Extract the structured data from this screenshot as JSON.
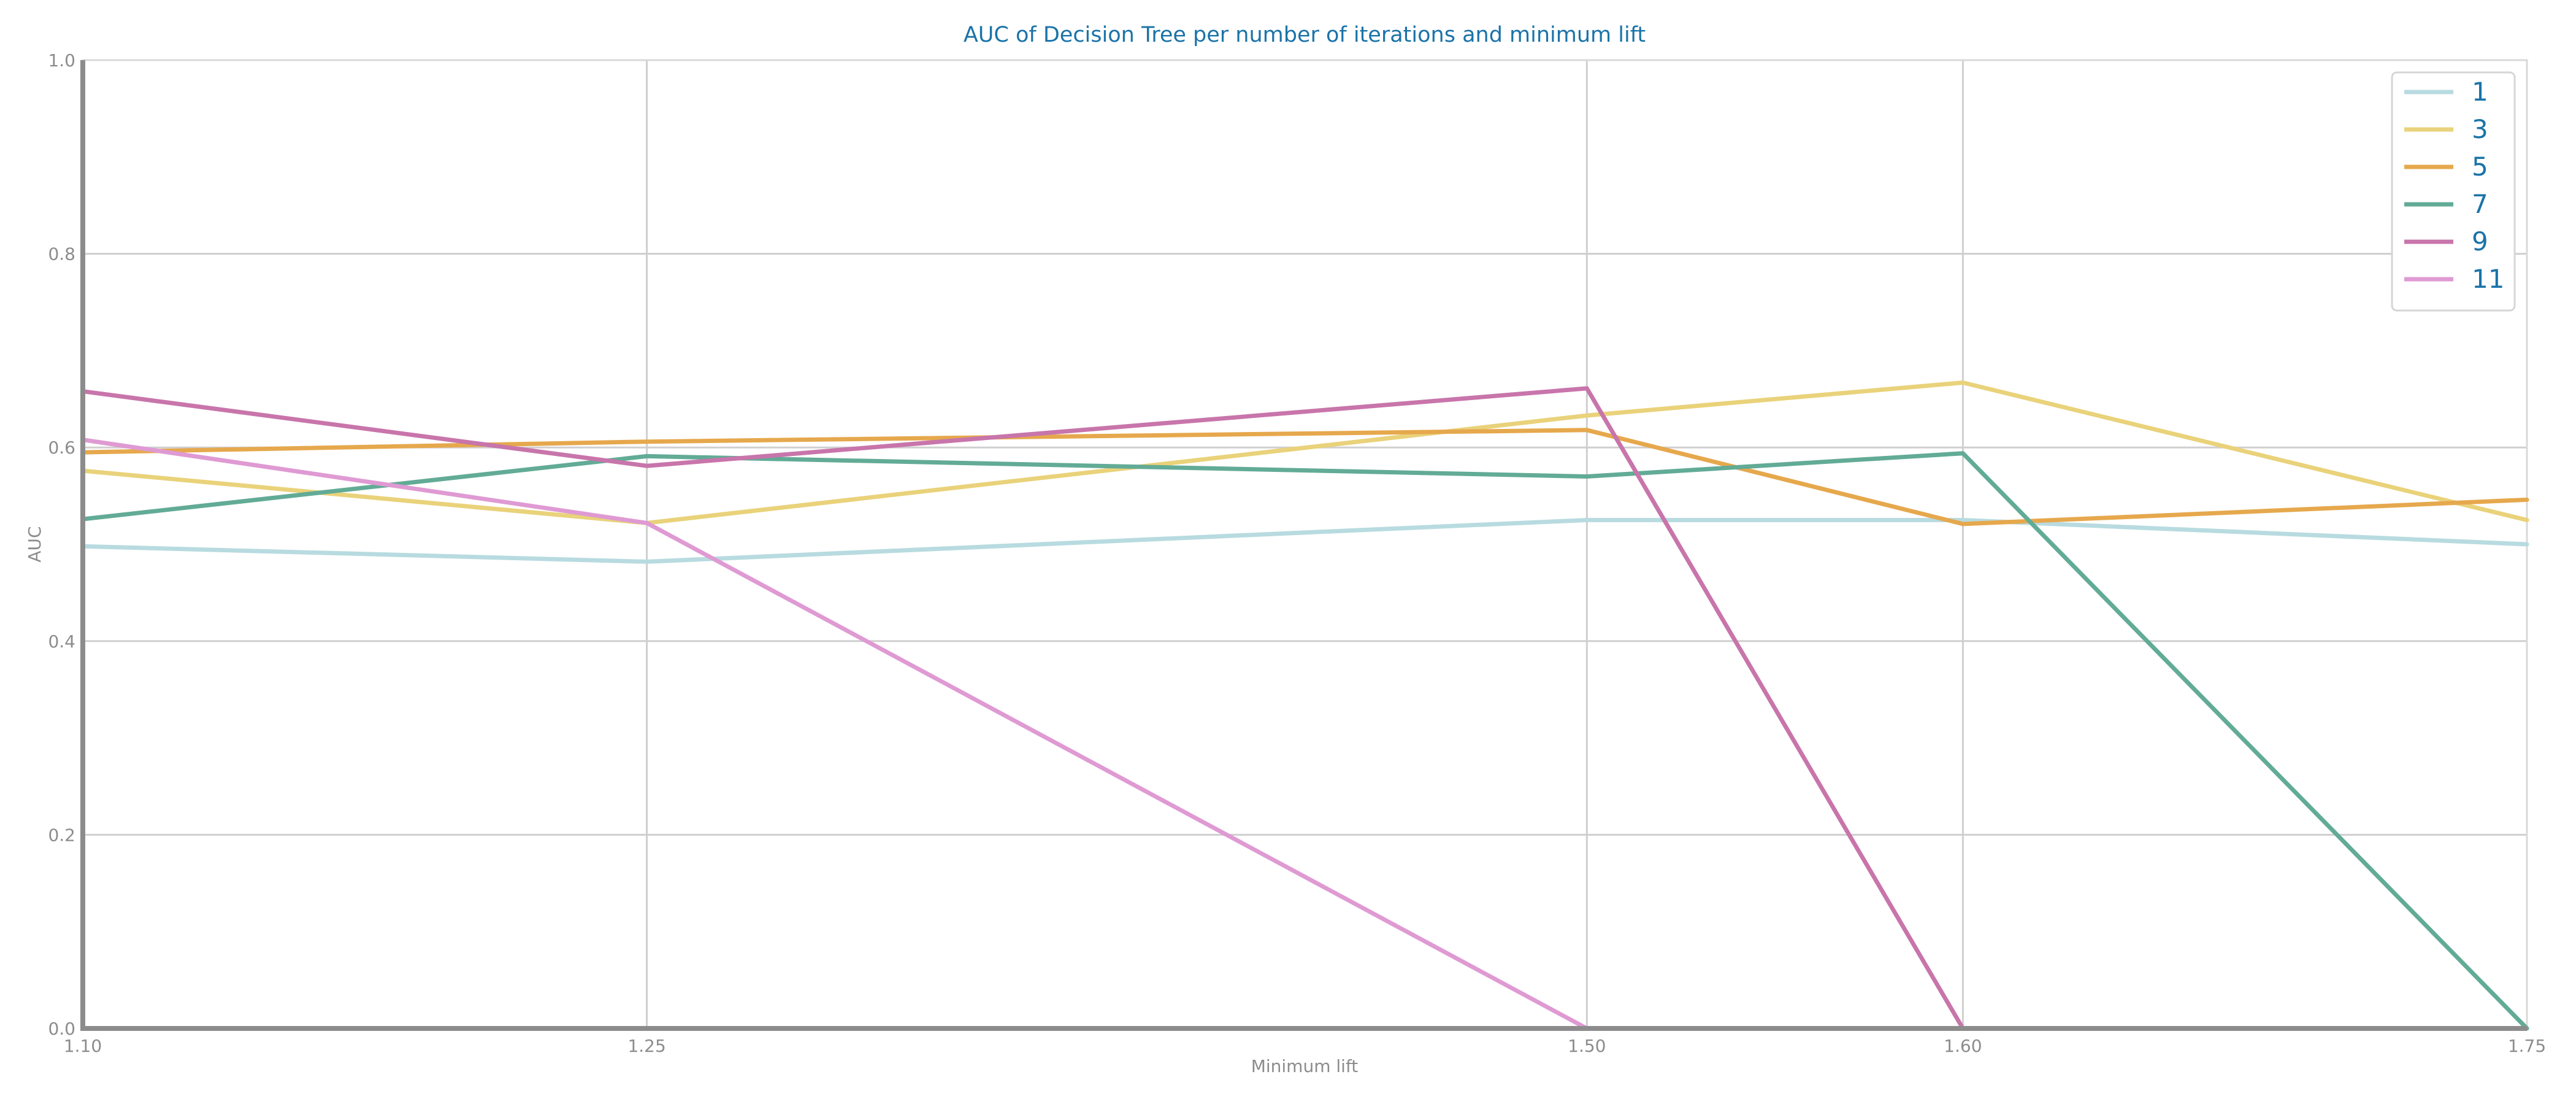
{
  "chart_data": {
    "type": "line",
    "title": "AUC of Decision Tree per number of iterations and minimum lift",
    "xlabel": "Minimum lift",
    "ylabel": "AUC",
    "x": [
      1.1,
      1.25,
      1.5,
      1.6,
      1.75
    ],
    "x_tick_labels": [
      "1.10",
      "1.25",
      "1.50",
      "1.60",
      "1.75"
    ],
    "xlim": [
      1.1,
      1.75
    ],
    "ylim": [
      0.0,
      1.0
    ],
    "y_ticks": [
      0.0,
      0.2,
      0.4,
      0.6,
      0.8,
      1.0
    ],
    "y_tick_labels": [
      "0.0",
      "0.2",
      "0.4",
      "0.6",
      "0.8",
      "1.0"
    ],
    "grid": true,
    "legend_position": "top-right",
    "series": [
      {
        "name": "1",
        "color": "#b8dbe0",
        "values": [
          0.498,
          0.482,
          0.525,
          0.525,
          0.5
        ]
      },
      {
        "name": "3",
        "color": "#e9d27a",
        "values": [
          0.576,
          0.522,
          0.633,
          0.667,
          0.525
        ]
      },
      {
        "name": "5",
        "color": "#e6a84d",
        "values": [
          0.595,
          0.606,
          0.618,
          0.521,
          0.546
        ]
      },
      {
        "name": "7",
        "color": "#62ab96",
        "values": [
          0.526,
          0.591,
          0.57,
          0.594,
          0.0
        ]
      },
      {
        "name": "9",
        "color": "#c875ab",
        "values": [
          0.658,
          0.581,
          0.661,
          0.0,
          null
        ]
      },
      {
        "name": "11",
        "color": "#df9ad3",
        "values": [
          0.608,
          0.522,
          0.0,
          null,
          null
        ]
      }
    ]
  },
  "colors": {
    "title": "#1a73a8",
    "axis_label": "#8c8c8c",
    "tick_label": "#8c8c8c",
    "axis": "#8c8c8c",
    "grid": "#cfcfcf",
    "legend_text": "#1a73a8"
  }
}
